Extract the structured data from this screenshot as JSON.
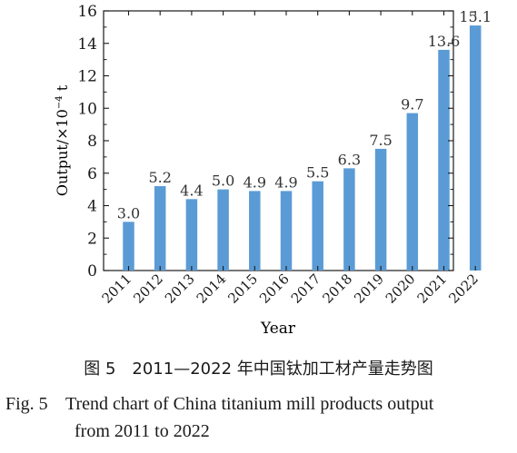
{
  "chart_data": {
    "type": "bar",
    "categories": [
      "2011",
      "2012",
      "2013",
      "2014",
      "2015",
      "2016",
      "2017",
      "2018",
      "2019",
      "2020",
      "2021",
      "2022"
    ],
    "values": [
      3.0,
      5.2,
      4.4,
      5.0,
      4.9,
      4.9,
      5.5,
      6.3,
      7.5,
      9.7,
      13.6,
      15.1
    ],
    "value_labels": [
      "3.0",
      "5.2",
      "4.4",
      "5.0",
      "4.9",
      "4.9",
      "5.5",
      "6.3",
      "7.5",
      "9.7",
      "13.6",
      "15.1"
    ],
    "xlabel": "Year",
    "ylabel_prefix": "Output/×10",
    "ylabel_exp": "−4",
    "ylabel_suffix": " t",
    "ylim": [
      0,
      16
    ],
    "yticks": [
      0,
      2,
      4,
      6,
      8,
      10,
      12,
      14,
      16
    ],
    "ytick_labels": [
      "0",
      "2",
      "4",
      "6",
      "8",
      "10",
      "12",
      "14",
      "16"
    ],
    "grid": false,
    "bar_color": "#5b9bd5"
  },
  "caption": {
    "cn": "图 5　2011—2022 年中国钛加工材产量走势图",
    "en_label": "Fig. 5",
    "en_line1": "Trend chart of China titanium mill products output",
    "en_line2": "from 2011 to 2022"
  }
}
